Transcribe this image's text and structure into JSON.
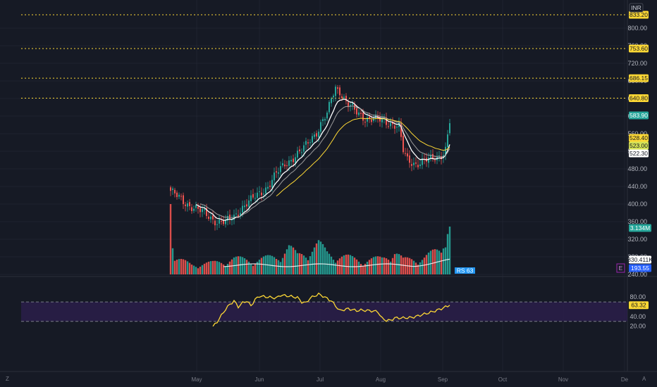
{
  "currency": "INR",
  "price_axis": {
    "ticks": [
      "800.00",
      "760.00",
      "720.00",
      "680.00",
      "640.00",
      "600.00",
      "560.00",
      "520.00",
      "480.00",
      "440.00",
      "400.00",
      "360.00",
      "320.00",
      "280.00",
      "240.00"
    ]
  },
  "horizontal_levels": [
    {
      "label": "833.20",
      "value": 833.2
    },
    {
      "label": "753.60",
      "value": 753.6
    },
    {
      "label": "686.15",
      "value": 686.15
    },
    {
      "label": "640.80",
      "value": 640.8
    }
  ],
  "price_tags": [
    {
      "label": "583.90",
      "value": 583.9,
      "bg": "#26a69a",
      "fg": "#ffffff"
    },
    {
      "label": "528.40",
      "value": 528.4,
      "bg": "#fdd835",
      "fg": "#131722"
    },
    {
      "label": "523.00",
      "value": 523.0,
      "bg": "#d4e157",
      "fg": "#131722"
    },
    {
      "label": "522.30",
      "value": 522.3,
      "bg": "#ffffff",
      "fg": "#131722"
    }
  ],
  "volume_tags": [
    {
      "label": "3.134M",
      "bg": "#26a69a",
      "fg": "#ffffff"
    },
    {
      "label": "830.411K",
      "bg": "#ffffff",
      "fg": "#131722"
    },
    {
      "label": "193.55",
      "bg": "#2962ff",
      "fg": "#ffffff"
    }
  ],
  "event_marker": "E",
  "rs_badge": "RS 63",
  "rsi_axis": {
    "ticks": [
      "80.00",
      "60.00",
      "40.00",
      "20.00"
    ],
    "upper_band": 70,
    "lower_band": 30,
    "current_label": "63.32",
    "current_value": 63.32
  },
  "months": [
    "May",
    "Jun",
    "Jul",
    "Aug",
    "Sep",
    "Oct",
    "Nov",
    "De"
  ],
  "colors": {
    "up": "#26a69a",
    "down": "#ef5350",
    "ema_fast": "#ffffff",
    "ema_mid": "#9e9e9e",
    "ema_slow": "#fdd835",
    "level_line": "#fdd835",
    "rsi_line": "#fdd835",
    "rsi_band_fill": "#2a1f4a"
  },
  "chart_data": {
    "type": "candlestick",
    "price_range": [
      215,
      850
    ],
    "price_anchors": [
      [
        0,
        430
      ],
      [
        6,
        405
      ],
      [
        12,
        390
      ],
      [
        18,
        372
      ],
      [
        22,
        360
      ],
      [
        26,
        358
      ],
      [
        30,
        372
      ],
      [
        34,
        393
      ],
      [
        38,
        408
      ],
      [
        42,
        425
      ],
      [
        46,
        440
      ],
      [
        50,
        468
      ],
      [
        54,
        492
      ],
      [
        58,
        505
      ],
      [
        62,
        520
      ],
      [
        66,
        548
      ],
      [
        70,
        570
      ],
      [
        72,
        590
      ],
      [
        74,
        602
      ],
      [
        76,
        640
      ],
      [
        78,
        665
      ],
      [
        80,
        658
      ],
      [
        82,
        640
      ],
      [
        84,
        625
      ],
      [
        88,
        608
      ],
      [
        92,
        596
      ],
      [
        96,
        592
      ],
      [
        100,
        590
      ],
      [
        104,
        584
      ],
      [
        108,
        575
      ],
      [
        110,
        520
      ],
      [
        112,
        500
      ],
      [
        116,
        492
      ],
      [
        120,
        497
      ],
      [
        124,
        503
      ],
      [
        128,
        512
      ],
      [
        130,
        525
      ],
      [
        132,
        583.9
      ]
    ],
    "volume_anchors": [
      [
        0,
        1.0
      ],
      [
        1,
        0.5
      ],
      [
        2,
        0.22
      ],
      [
        10,
        0.14
      ],
      [
        20,
        0.16
      ],
      [
        30,
        0.22
      ],
      [
        40,
        0.2
      ],
      [
        50,
        0.25
      ],
      [
        56,
        0.38
      ],
      [
        60,
        0.26
      ],
      [
        66,
        0.35
      ],
      [
        70,
        0.42
      ],
      [
        74,
        0.3
      ],
      [
        80,
        0.26
      ],
      [
        90,
        0.2
      ],
      [
        100,
        0.22
      ],
      [
        104,
        0.3
      ],
      [
        106,
        0.33
      ],
      [
        110,
        0.2
      ],
      [
        120,
        0.24
      ],
      [
        128,
        0.35
      ],
      [
        132,
        0.92
      ]
    ],
    "rsi_anchors": [
      [
        20,
        19
      ],
      [
        22,
        29
      ],
      [
        24,
        42
      ],
      [
        26,
        55
      ],
      [
        28,
        65
      ],
      [
        30,
        72
      ],
      [
        32,
        60
      ],
      [
        34,
        68
      ],
      [
        36,
        72
      ],
      [
        38,
        62
      ],
      [
        40,
        75
      ],
      [
        42,
        82
      ],
      [
        46,
        80
      ],
      [
        50,
        78
      ],
      [
        52,
        84
      ],
      [
        56,
        82
      ],
      [
        60,
        79
      ],
      [
        62,
        70
      ],
      [
        64,
        68
      ],
      [
        66,
        78
      ],
      [
        68,
        82
      ],
      [
        70,
        86
      ],
      [
        72,
        82
      ],
      [
        76,
        72
      ],
      [
        80,
        52
      ],
      [
        84,
        56
      ],
      [
        88,
        52
      ],
      [
        90,
        53
      ],
      [
        94,
        52
      ],
      [
        98,
        50
      ],
      [
        100,
        36
      ],
      [
        102,
        32
      ],
      [
        104,
        32
      ],
      [
        106,
        37
      ],
      [
        110,
        37
      ],
      [
        114,
        38
      ],
      [
        116,
        40
      ],
      [
        120,
        45
      ],
      [
        124,
        50
      ],
      [
        128,
        56
      ],
      [
        132,
        63.32
      ]
    ],
    "rsi_range": [
      15,
      90
    ]
  }
}
